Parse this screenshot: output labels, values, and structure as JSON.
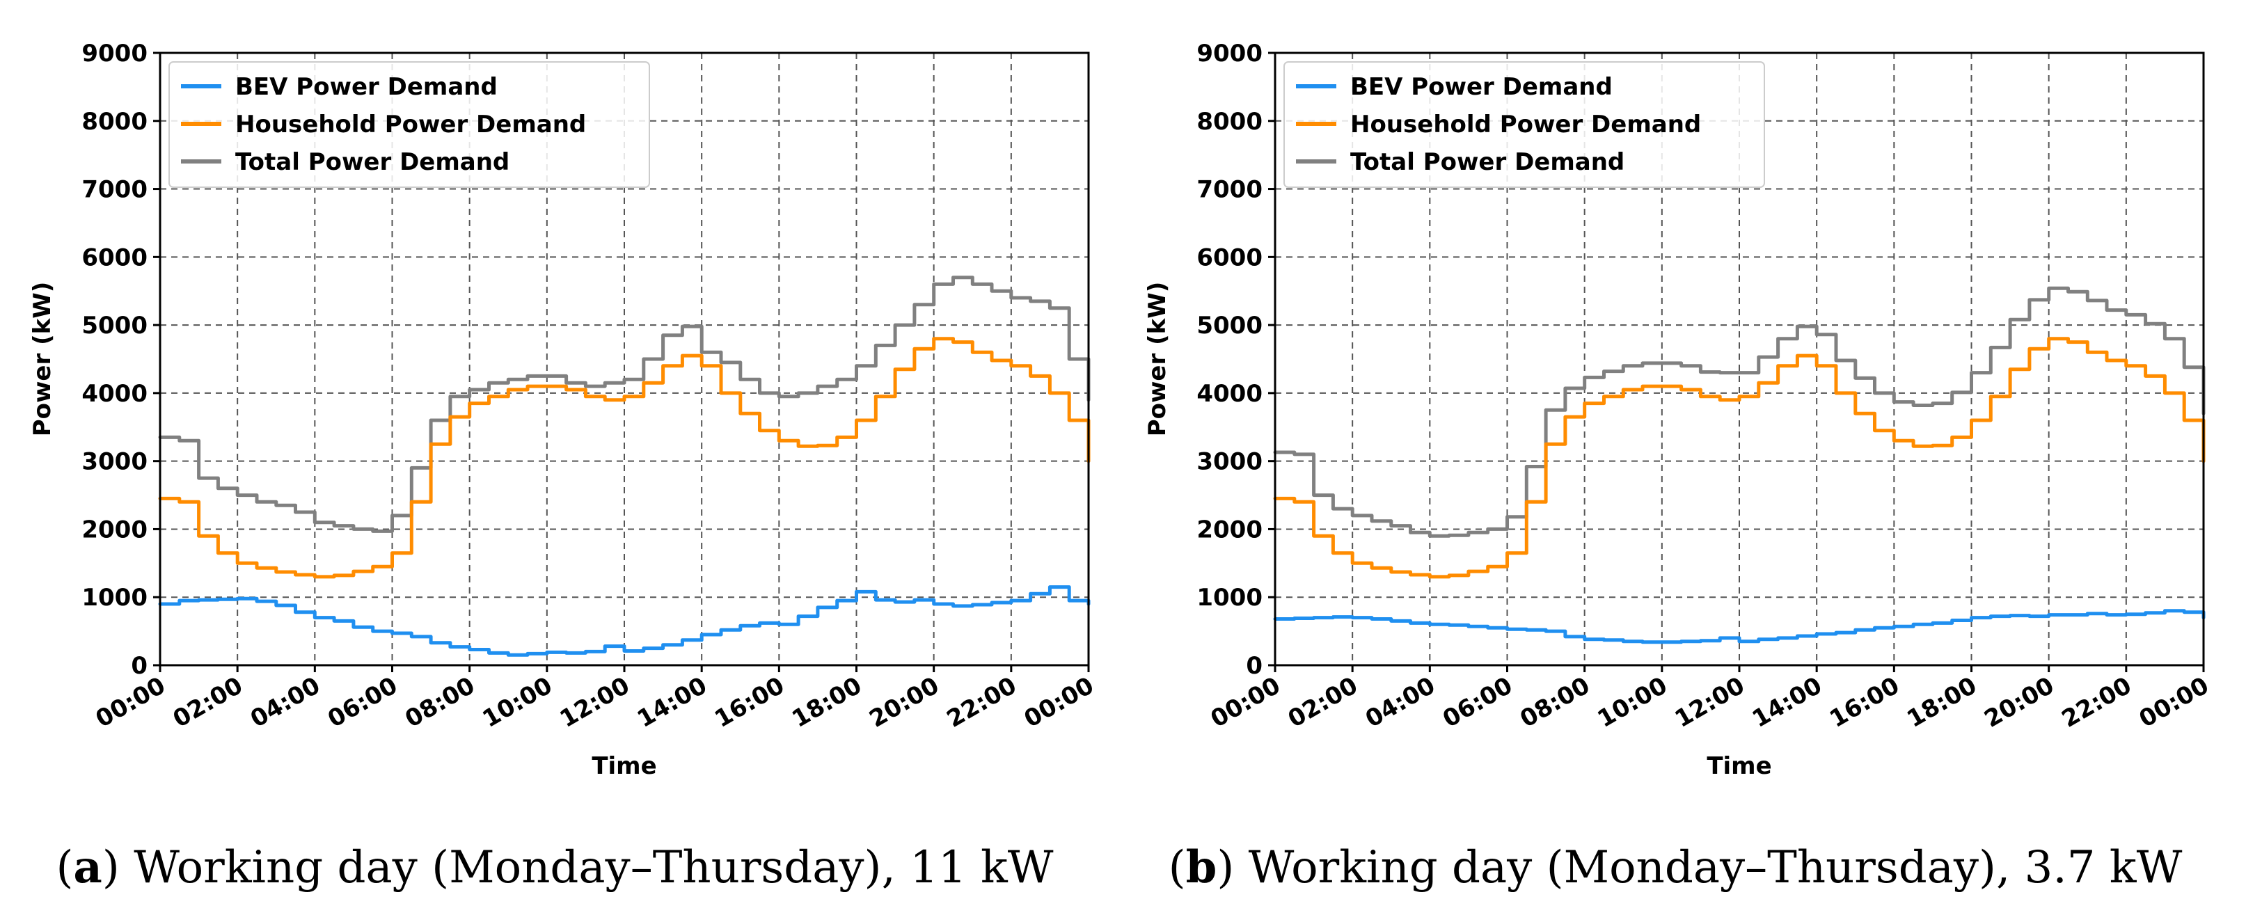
{
  "chart_data": [
    {
      "type": "line",
      "caption_letter": "a",
      "caption_text": "Working day (Monday–Thursday), 11 kW",
      "xlabel": "Time",
      "ylabel": "Power (kW)",
      "ylim": [
        0,
        9000
      ],
      "yticks": [
        "0",
        "1000",
        "2000",
        "3000",
        "4000",
        "5000",
        "6000",
        "7000",
        "8000",
        "9000"
      ],
      "xlim": [
        0,
        24
      ],
      "xticks": [
        "00:00",
        "02:00",
        "04:00",
        "06:00",
        "08:00",
        "10:00",
        "12:00",
        "14:00",
        "16:00",
        "18:00",
        "20:00",
        "22:00",
        "00:00"
      ],
      "grid": true,
      "legend_position": "top-left",
      "x": [
        0,
        0.5,
        1,
        1.5,
        2,
        2.5,
        3,
        3.5,
        4,
        4.5,
        5,
        5.5,
        6,
        6.5,
        7,
        7.5,
        8,
        8.5,
        9,
        9.5,
        10,
        10.5,
        11,
        11.5,
        12,
        12.5,
        13,
        13.5,
        14,
        14.5,
        15,
        15.5,
        16,
        16.5,
        17,
        17.5,
        18,
        18.5,
        19,
        19.5,
        20,
        20.5,
        21,
        21.5,
        22,
        22.5,
        23,
        23.5,
        24
      ],
      "series": [
        {
          "name": "BEV Power Demand",
          "color": "#1f8ff0",
          "values": [
            900,
            950,
            960,
            970,
            980,
            940,
            880,
            780,
            700,
            650,
            560,
            500,
            470,
            420,
            330,
            270,
            230,
            180,
            150,
            170,
            190,
            180,
            200,
            280,
            210,
            250,
            300,
            370,
            450,
            520,
            580,
            620,
            600,
            720,
            850,
            950,
            1080,
            960,
            930,
            960,
            900,
            870,
            890,
            920,
            950,
            1050,
            1150,
            950,
            900
          ]
        },
        {
          "name": "Household Power Demand",
          "color": "#ff8c00",
          "values": [
            2450,
            2400,
            1900,
            1650,
            1500,
            1430,
            1370,
            1330,
            1300,
            1320,
            1380,
            1450,
            1650,
            2400,
            3250,
            3650,
            3850,
            3950,
            4050,
            4100,
            4100,
            4050,
            3950,
            3900,
            3950,
            4150,
            4400,
            4550,
            4400,
            4000,
            3700,
            3450,
            3300,
            3220,
            3230,
            3350,
            3600,
            3950,
            4350,
            4650,
            4800,
            4750,
            4600,
            4480,
            4400,
            4250,
            4000,
            3600,
            3000
          ]
        },
        {
          "name": "Total Power Demand",
          "color": "#808080",
          "values": [
            3350,
            3300,
            2750,
            2600,
            2500,
            2400,
            2350,
            2250,
            2100,
            2050,
            2000,
            1970,
            2200,
            2900,
            3600,
            3950,
            4050,
            4150,
            4200,
            4250,
            4250,
            4150,
            4100,
            4150,
            4200,
            4500,
            4850,
            4980,
            4600,
            4450,
            4200,
            4000,
            3950,
            4000,
            4100,
            4200,
            4400,
            4700,
            5000,
            5300,
            5600,
            5700,
            5600,
            5500,
            5400,
            5350,
            5250,
            4500,
            3900
          ]
        }
      ]
    },
    {
      "type": "line",
      "caption_letter": "b",
      "caption_text": "Working day (Monday–Thursday), 3.7 kW",
      "xlabel": "Time",
      "ylabel": "Power (kW)",
      "ylim": [
        0,
        9000
      ],
      "yticks": [
        "0",
        "1000",
        "2000",
        "3000",
        "4000",
        "5000",
        "6000",
        "7000",
        "8000",
        "9000"
      ],
      "xlim": [
        0,
        24
      ],
      "xticks": [
        "00:00",
        "02:00",
        "04:00",
        "06:00",
        "08:00",
        "10:00",
        "12:00",
        "14:00",
        "16:00",
        "18:00",
        "20:00",
        "22:00",
        "00:00"
      ],
      "grid": true,
      "legend_position": "top-left",
      "x": [
        0,
        0.5,
        1,
        1.5,
        2,
        2.5,
        3,
        3.5,
        4,
        4.5,
        5,
        5.5,
        6,
        6.5,
        7,
        7.5,
        8,
        8.5,
        9,
        9.5,
        10,
        10.5,
        11,
        11.5,
        12,
        12.5,
        13,
        13.5,
        14,
        14.5,
        15,
        15.5,
        16,
        16.5,
        17,
        17.5,
        18,
        18.5,
        19,
        19.5,
        20,
        20.5,
        21,
        21.5,
        22,
        22.5,
        23,
        23.5,
        24
      ],
      "series": [
        {
          "name": "BEV Power Demand",
          "color": "#1f8ff0",
          "values": [
            680,
            690,
            700,
            710,
            700,
            680,
            650,
            620,
            600,
            590,
            570,
            550,
            530,
            520,
            500,
            420,
            380,
            370,
            350,
            340,
            340,
            350,
            360,
            400,
            350,
            380,
            400,
            430,
            460,
            480,
            520,
            550,
            570,
            600,
            620,
            660,
            700,
            720,
            730,
            720,
            740,
            740,
            760,
            740,
            750,
            770,
            800,
            780,
            700
          ]
        },
        {
          "name": "Household Power Demand",
          "color": "#ff8c00",
          "values": [
            2450,
            2400,
            1900,
            1650,
            1500,
            1430,
            1370,
            1330,
            1300,
            1320,
            1380,
            1450,
            1650,
            2400,
            3250,
            3650,
            3850,
            3950,
            4050,
            4100,
            4100,
            4050,
            3950,
            3900,
            3950,
            4150,
            4400,
            4550,
            4400,
            4000,
            3700,
            3450,
            3300,
            3220,
            3230,
            3350,
            3600,
            3950,
            4350,
            4650,
            4800,
            4750,
            4600,
            4480,
            4400,
            4250,
            4000,
            3600,
            3000
          ]
        },
        {
          "name": "Total Power Demand",
          "color": "#808080",
          "values": [
            3130,
            3100,
            2500,
            2300,
            2200,
            2120,
            2050,
            1950,
            1900,
            1910,
            1950,
            2000,
            2180,
            2920,
            3750,
            4070,
            4230,
            4320,
            4400,
            4440,
            4440,
            4400,
            4310,
            4300,
            4300,
            4530,
            4800,
            4980,
            4860,
            4480,
            4220,
            4000,
            3870,
            3820,
            3850,
            4010,
            4300,
            4670,
            5080,
            5370,
            5540,
            5490,
            5360,
            5220,
            5150,
            5020,
            4800,
            4380,
            3700
          ]
        }
      ]
    }
  ]
}
